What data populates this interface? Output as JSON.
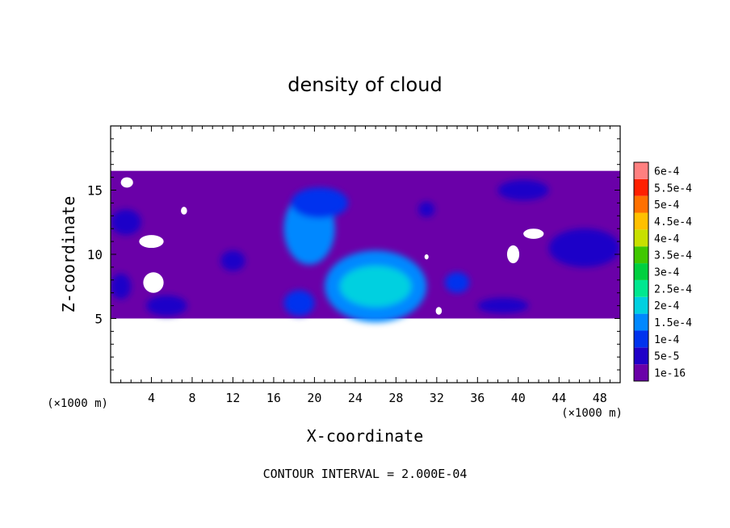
{
  "chart_data": {
    "type": "heatmap",
    "title": "density of cloud",
    "xlabel": "X-coordinate",
    "ylabel": "Z-coordinate",
    "x_unit": "(×1000 m)",
    "z_unit": "(×1000 m)",
    "xlim": [
      0,
      50
    ],
    "ylim": [
      0,
      20
    ],
    "x_ticks": [
      4,
      8,
      12,
      16,
      20,
      24,
      28,
      32,
      36,
      40,
      44,
      48
    ],
    "y_ticks": [
      5,
      10,
      15
    ],
    "footer": "CONTOUR INTERVAL = 2.000E-04",
    "legend_position": "right",
    "colorbar": [
      {
        "label": "1e-16",
        "color": "#6a00a8"
      },
      {
        "label": "5e-5",
        "color": "#1f00c8"
      },
      {
        "label": "1e-4",
        "color": "#0033ee"
      },
      {
        "label": "1.5e-4",
        "color": "#0088ff"
      },
      {
        "label": "2e-4",
        "color": "#00d0e0"
      },
      {
        "label": "2.5e-4",
        "color": "#00e890"
      },
      {
        "label": "3e-4",
        "color": "#00d040"
      },
      {
        "label": "3.5e-4",
        "color": "#40c800"
      },
      {
        "label": "4e-4",
        "color": "#c8e000"
      },
      {
        "label": "4.5e-4",
        "color": "#ffc000"
      },
      {
        "label": "5e-4",
        "color": "#ff7000"
      },
      {
        "label": "5.5e-4",
        "color": "#ff2000"
      },
      {
        "label": "6e-4",
        "color": "#ff8080"
      }
    ],
    "cloud_layer": {
      "z_min": 5,
      "z_max": 16.5,
      "fill": "#6a00a8"
    },
    "features": [
      {
        "x": 19.5,
        "z": 12.0,
        "rx": 2.5,
        "rz": 2.8,
        "level": 3
      },
      {
        "x": 20.5,
        "z": 14.0,
        "rx": 2.8,
        "rz": 1.2,
        "level": 2
      },
      {
        "x": 26.0,
        "z": 7.5,
        "rx": 5.0,
        "rz": 2.8,
        "level": 3
      },
      {
        "x": 26.0,
        "z": 7.5,
        "rx": 3.5,
        "rz": 1.6,
        "level": 4
      },
      {
        "x": 18.5,
        "z": 6.2,
        "rx": 1.5,
        "rz": 1.0,
        "level": 2
      },
      {
        "x": 34.0,
        "z": 7.8,
        "rx": 1.2,
        "rz": 0.8,
        "level": 2
      },
      {
        "x": 46.5,
        "z": 10.5,
        "rx": 3.5,
        "rz": 1.5,
        "level": 1
      },
      {
        "x": 5.5,
        "z": 6.0,
        "rx": 2.0,
        "rz": 0.8,
        "level": 1
      },
      {
        "x": 12.0,
        "z": 9.5,
        "rx": 1.2,
        "rz": 0.8,
        "level": 1
      },
      {
        "x": 1.0,
        "z": 7.5,
        "rx": 1.0,
        "rz": 1.0,
        "level": 1
      },
      {
        "x": 1.5,
        "z": 12.5,
        "rx": 1.5,
        "rz": 1.0,
        "level": 1
      },
      {
        "x": 40.5,
        "z": 15.0,
        "rx": 2.5,
        "rz": 0.8,
        "level": 1
      },
      {
        "x": 31.0,
        "z": 13.5,
        "rx": 0.8,
        "rz": 0.6,
        "level": 1
      },
      {
        "x": 38.5,
        "z": 6.0,
        "rx": 2.5,
        "rz": 0.6,
        "level": 1
      }
    ],
    "holes": [
      {
        "x": 4.0,
        "z": 11.0,
        "rx": 1.2,
        "rz": 0.5
      },
      {
        "x": 4.2,
        "z": 7.8,
        "rx": 1.0,
        "rz": 0.8
      },
      {
        "x": 7.2,
        "z": 13.4,
        "rx": 0.3,
        "rz": 0.3
      },
      {
        "x": 39.5,
        "z": 10.0,
        "rx": 0.6,
        "rz": 0.7
      },
      {
        "x": 41.5,
        "z": 11.6,
        "rx": 1.0,
        "rz": 0.4
      },
      {
        "x": 31.0,
        "z": 9.8,
        "rx": 0.2,
        "rz": 0.2
      },
      {
        "x": 32.2,
        "z": 5.6,
        "rx": 0.3,
        "rz": 0.3
      },
      {
        "x": 1.6,
        "z": 15.6,
        "rx": 0.6,
        "rz": 0.4
      }
    ]
  }
}
